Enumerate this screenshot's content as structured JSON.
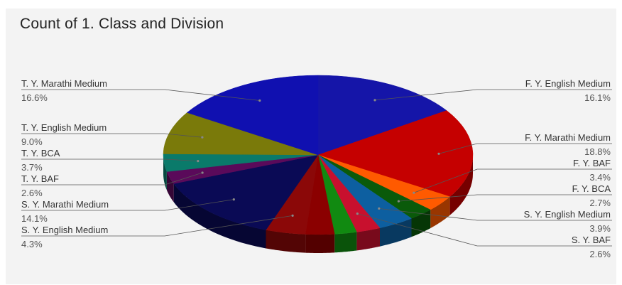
{
  "chart_data": {
    "type": "pie",
    "title": "Count of 1. Class and Division",
    "slices": [
      {
        "label": "F. Y.  English Medium",
        "percent_label": "16.1%",
        "value": 16.1,
        "color": "#1515a8"
      },
      {
        "label": "F. Y.  Marathi Medium",
        "percent_label": "18.8%",
        "value": 18.8,
        "color": "#c50000"
      },
      {
        "label": "F. Y. BAF",
        "percent_label": "3.4%",
        "value": 3.4,
        "color": "#ff5a00"
      },
      {
        "label": "F. Y. BCA",
        "percent_label": "2.7%",
        "value": 2.7,
        "color": "#0a5a0a"
      },
      {
        "label": "S. Y.  English  Medium",
        "percent_label": "3.9%",
        "value": 3.9,
        "color": "#0d5fa0"
      },
      {
        "label": "S. Y. BAF",
        "percent_label": "2.6%",
        "value": 2.6,
        "color": "#c8102e"
      },
      {
        "label": "",
        "percent_label": "",
        "value": 2.4,
        "color": "#118a11"
      },
      {
        "label": "",
        "percent_label": "",
        "value": 3.1,
        "color": "#8b0000"
      },
      {
        "label": "S. Y. English Medium",
        "percent_label": "4.3%",
        "value": 4.3,
        "color": "#8b0808"
      },
      {
        "label": "S. Y. Marathi Medium",
        "percent_label": "14.1%",
        "value": 14.1,
        "color": "#0a0a55"
      },
      {
        "label": "T. Y. BAF",
        "percent_label": "2.6%",
        "value": 2.6,
        "color": "#5a0a5a"
      },
      {
        "label": "T. Y. BCA",
        "percent_label": "3.7%",
        "value": 3.7,
        "color": "#0a7a6a"
      },
      {
        "label": "T. Y. English Medium",
        "percent_label": "9.0%",
        "value": 9.0,
        "color": "#7a7a0a"
      },
      {
        "label": "T. Y. Marathi Medium",
        "percent_label": "16.6%",
        "value": 16.6,
        "color": "#1010b0"
      }
    ]
  }
}
